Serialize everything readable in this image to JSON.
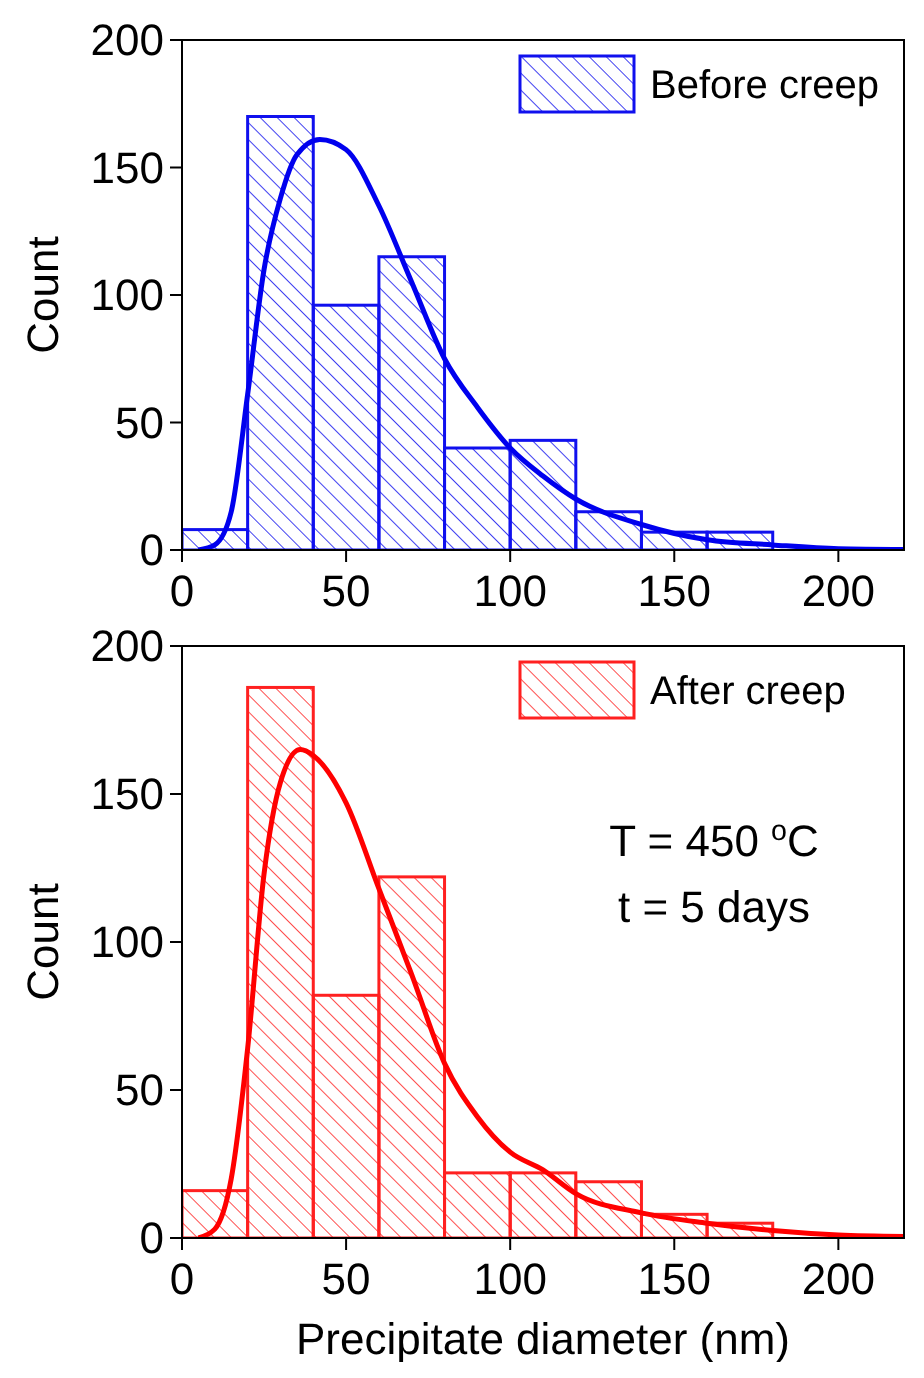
{
  "chart_data": [
    {
      "type": "histogram",
      "ylabel": "Count",
      "bins": [
        0,
        20,
        40,
        60,
        80,
        100,
        120,
        140,
        160,
        180
      ],
      "xlim": [
        0,
        220
      ],
      "ylim": [
        0,
        200
      ],
      "xticks": [
        0,
        50,
        100,
        150,
        200
      ],
      "yticks": [
        0,
        50,
        100,
        150,
        200
      ],
      "legend": "top right",
      "series": [
        {
          "name": "Before creep",
          "color": "#1010ee",
          "values": [
            8,
            170,
            96,
            115,
            40,
            43,
            15,
            7,
            7
          ]
        },
        {
          "type": "line",
          "color": "#0000ee",
          "x": [
            5,
            10,
            15,
            20,
            25,
            30,
            35,
            42,
            50,
            60,
            70,
            80,
            90,
            100,
            110,
            120,
            140,
            160,
            180,
            200,
            220
          ],
          "values": [
            0,
            2,
            15,
            61,
            110,
            138,
            155,
            161,
            157,
            135,
            105,
            75,
            56,
            40,
            29,
            20,
            10,
            4,
            2,
            0.5,
            0.2
          ]
        }
      ]
    },
    {
      "type": "histogram",
      "ylabel": "Count",
      "xlabel": "Precipitate diameter (nm)",
      "bins": [
        0,
        20,
        40,
        60,
        80,
        100,
        120,
        140,
        160,
        180
      ],
      "xlim": [
        0,
        220
      ],
      "ylim": [
        0,
        200
      ],
      "xticks": [
        0,
        50,
        100,
        150,
        200
      ],
      "yticks": [
        0,
        50,
        100,
        150,
        200
      ],
      "legend": "top right",
      "annotations": [
        "T = 450 $^{o}$C",
        "t = 5 days"
      ],
      "series": [
        {
          "name": "After creep",
          "color": "#ff2020",
          "values": [
            16,
            186,
            82,
            122,
            22,
            22,
            19,
            8,
            5
          ]
        },
        {
          "type": "line",
          "color": "#ff0000",
          "x": [
            5,
            10,
            15,
            20,
            25,
            30,
            36,
            40,
            50,
            60,
            70,
            80,
            90,
            100,
            110,
            120,
            140,
            160,
            180,
            200,
            220
          ],
          "values": [
            0,
            3,
            20,
            64,
            123,
            154,
            165,
            163,
            147,
            118,
            89,
            59,
            41,
            29,
            23,
            15,
            8.5,
            5,
            2.5,
            1,
            0.5
          ]
        }
      ]
    }
  ]
}
